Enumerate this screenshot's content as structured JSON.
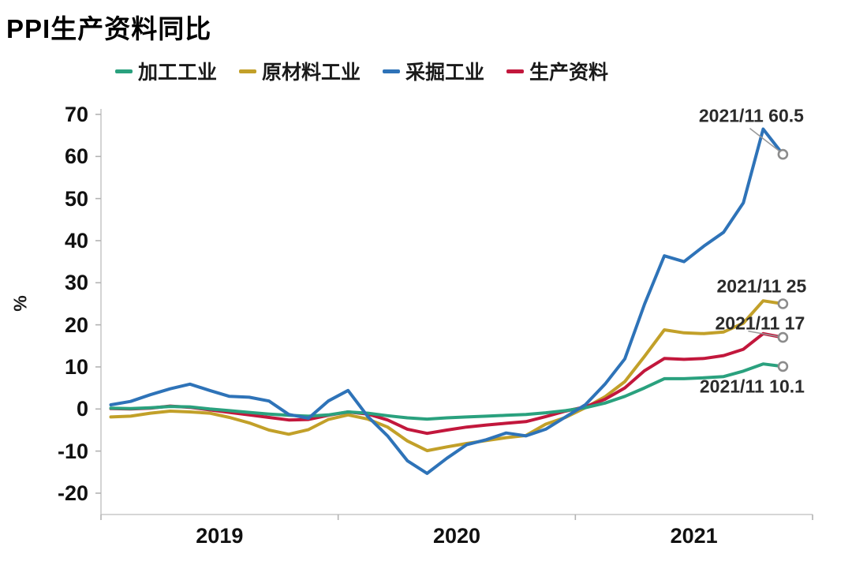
{
  "title": "PPI生产资料同比",
  "y_axis": {
    "unit": "%",
    "ticks": [
      70,
      60,
      50,
      40,
      30,
      20,
      10,
      0,
      -10,
      -20
    ],
    "min": -20,
    "max": 70
  },
  "x_axis": {
    "tick_labels": [
      "2019",
      "2020",
      "2021"
    ]
  },
  "legend": [
    {
      "label": "加工工业",
      "color": "#2aa17e"
    },
    {
      "label": "原材料工业",
      "color": "#c2a029"
    },
    {
      "label": "采掘工业",
      "color": "#2e73b8"
    },
    {
      "label": "生产资料",
      "color": "#c2173c"
    }
  ],
  "annotations": [
    {
      "text": "2021/11 60.5",
      "series": "采掘工业"
    },
    {
      "text": "2021/11 25",
      "series": "原材料工业"
    },
    {
      "text": "2021/11 17",
      "series": "生产资料"
    },
    {
      "text": "2021/11 10.1",
      "series": "加工工业"
    }
  ],
  "colors": {
    "background": "#ffffff",
    "axis_line": "#c9c9c9",
    "tick_mark": "#b3b3b3",
    "tick_text": "#111111",
    "annotation_text": "#2b2b2b",
    "marker_stroke": "#8c8c8c",
    "marker_fill": "#ffffff",
    "leader_line": "#9a9a9a"
  },
  "chart_data": {
    "type": "line",
    "title": "PPI生产资料同比",
    "ylabel": "%",
    "ylim": [
      -20,
      70
    ],
    "grid": false,
    "legend_position": "top",
    "last_point_markers": true,
    "x": [
      "2019/01",
      "2019/02",
      "2019/03",
      "2019/04",
      "2019/05",
      "2019/06",
      "2019/07",
      "2019/08",
      "2019/09",
      "2019/10",
      "2019/11",
      "2019/12",
      "2020/01",
      "2020/02",
      "2020/03",
      "2020/04",
      "2020/05",
      "2020/06",
      "2020/07",
      "2020/08",
      "2020/09",
      "2020/10",
      "2020/11",
      "2020/12",
      "2021/01",
      "2021/02",
      "2021/03",
      "2021/04",
      "2021/05",
      "2021/06",
      "2021/07",
      "2021/08",
      "2021/09",
      "2021/10",
      "2021/11"
    ],
    "x_axis_year_ticks": [
      "2019",
      "2020",
      "2021"
    ],
    "series": [
      {
        "name": "加工工业",
        "color": "#2aa17e",
        "last_label": "2021/11 10.1",
        "values": [
          0.2,
          0.1,
          0.3,
          0.6,
          0.5,
          0.0,
          -0.4,
          -0.8,
          -1.2,
          -1.5,
          -1.7,
          -1.4,
          -0.7,
          -1.0,
          -1.6,
          -2.1,
          -2.4,
          -2.1,
          -1.9,
          -1.7,
          -1.5,
          -1.3,
          -0.9,
          -0.4,
          0.3,
          1.4,
          3.0,
          5.0,
          7.2,
          7.2,
          7.4,
          7.7,
          9.0,
          10.7,
          10.1
        ]
      },
      {
        "name": "原材料工业",
        "color": "#c2a029",
        "last_label": "2021/11 25",
        "values": [
          -1.9,
          -1.7,
          -1.0,
          -0.5,
          -0.7,
          -1.0,
          -2.0,
          -3.3,
          -5.0,
          -6.0,
          -4.9,
          -2.5,
          -1.4,
          -2.4,
          -4.3,
          -7.6,
          -9.9,
          -9.0,
          -8.2,
          -7.5,
          -6.8,
          -6.3,
          -3.6,
          -2.0,
          0.3,
          2.9,
          6.5,
          12.5,
          18.8,
          18.1,
          17.9,
          18.3,
          20.4,
          25.7,
          25.0
        ]
      },
      {
        "name": "采掘工业",
        "color": "#2e73b8",
        "last_label": "2021/11 60.5",
        "values": [
          1.0,
          1.8,
          3.4,
          4.8,
          5.9,
          4.4,
          3.0,
          2.8,
          1.9,
          -1.3,
          -2.2,
          1.9,
          4.4,
          -1.8,
          -6.4,
          -12.3,
          -15.3,
          -11.7,
          -8.5,
          -7.3,
          -5.7,
          -6.4,
          -4.8,
          -1.9,
          1.0,
          5.9,
          11.9,
          24.9,
          36.4,
          35.0,
          38.7,
          42.0,
          49.0,
          66.5,
          60.5
        ]
      },
      {
        "name": "生产资料",
        "color": "#c2173c",
        "last_label": "2021/11 17",
        "values": [
          0.1,
          0.0,
          0.2,
          0.7,
          0.4,
          -0.2,
          -0.8,
          -1.4,
          -2.0,
          -2.6,
          -2.5,
          -1.5,
          -0.7,
          -1.2,
          -2.6,
          -4.8,
          -5.8,
          -5.0,
          -4.3,
          -3.8,
          -3.4,
          -3.0,
          -1.8,
          -0.5,
          0.5,
          2.3,
          5.0,
          9.1,
          12.0,
          11.8,
          12.0,
          12.7,
          14.2,
          17.9,
          17.0
        ]
      }
    ]
  }
}
